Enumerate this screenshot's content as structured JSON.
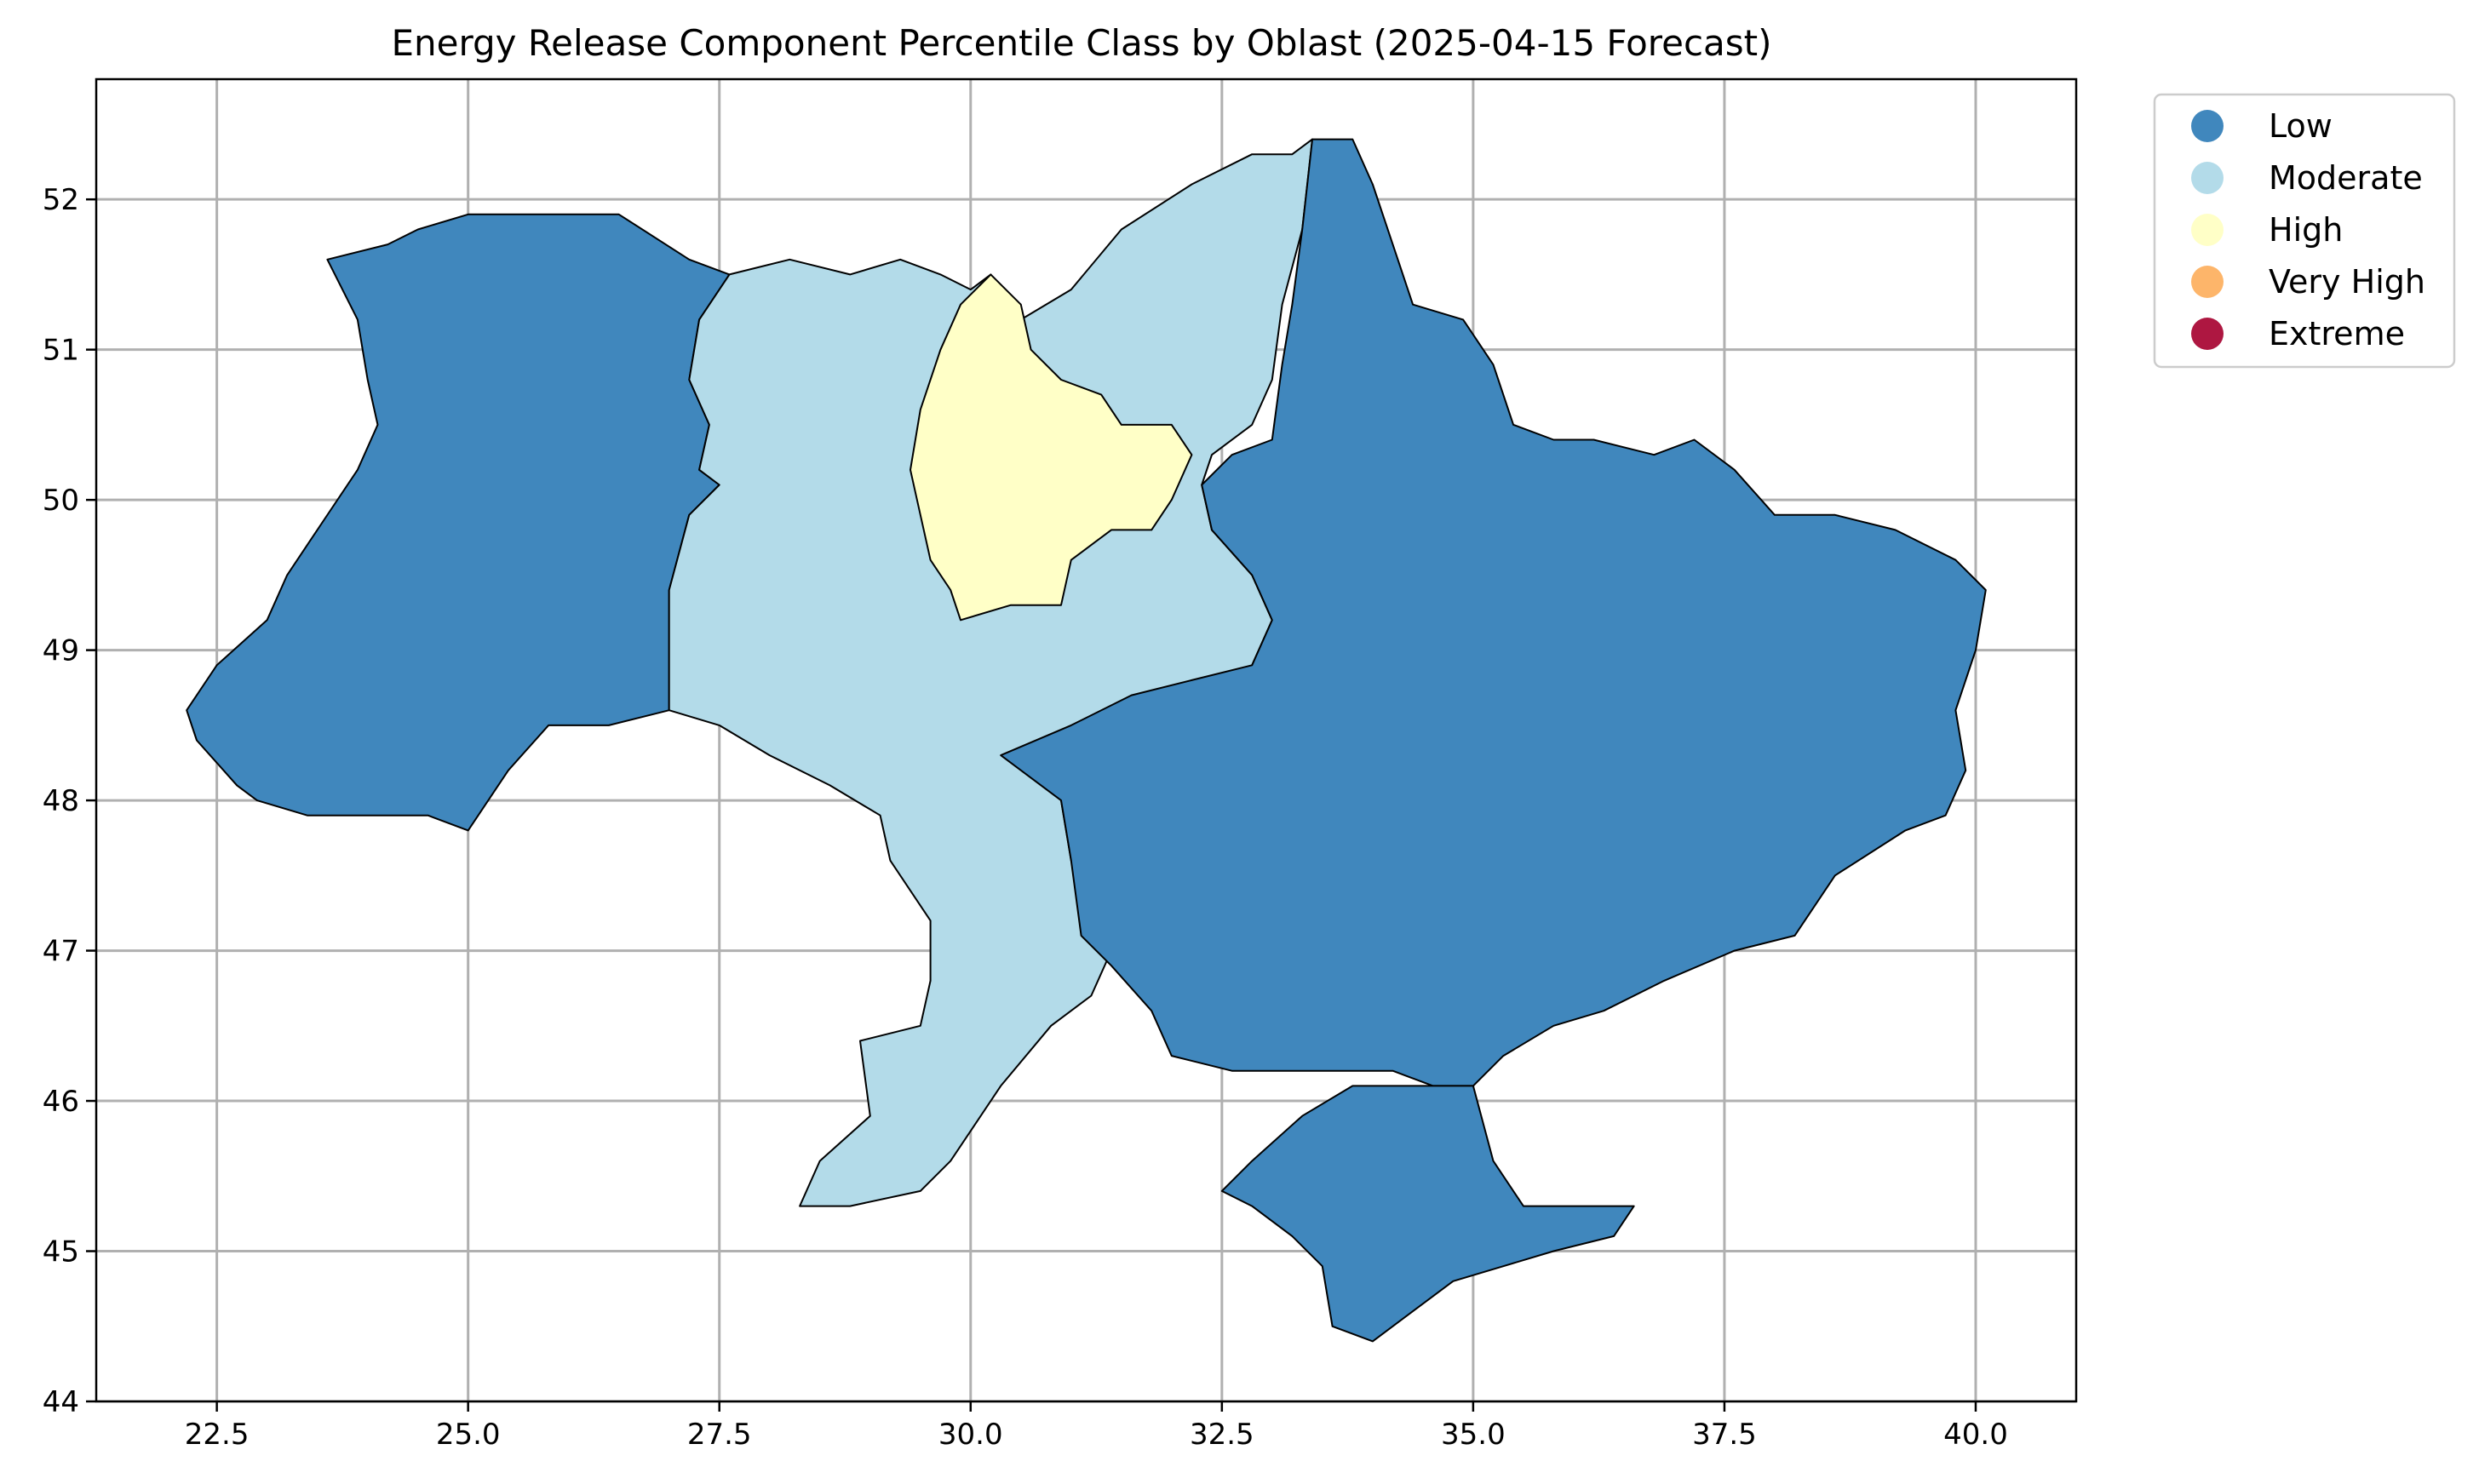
{
  "chart_data": {
    "type": "choropleth",
    "title": "Energy Release Component Percentile Class by Oblast (2025-04-15 Forecast)",
    "xlim": [
      21.3,
      41.0
    ],
    "ylim": [
      44.0,
      52.8
    ],
    "x_ticks": [
      "22.5",
      "25.0",
      "27.5",
      "30.0",
      "32.5",
      "35.0",
      "37.5",
      "40.0"
    ],
    "x_tick_values": [
      22.5,
      25.0,
      27.5,
      30.0,
      32.5,
      35.0,
      37.5,
      40.0
    ],
    "y_ticks": [
      "44",
      "45",
      "46",
      "47",
      "48",
      "49",
      "50",
      "51",
      "52"
    ],
    "y_tick_values": [
      44,
      45,
      46,
      47,
      48,
      49,
      50,
      51,
      52
    ],
    "grid": true,
    "legend_position": "outside top-right",
    "legend": [
      {
        "label": "Low",
        "color": "#4087bd"
      },
      {
        "label": "Moderate",
        "color": "#b3dbe9"
      },
      {
        "label": "High",
        "color": "#ffffc7"
      },
      {
        "label": "Very High",
        "color": "#fdb56a"
      },
      {
        "label": "Extreme",
        "color": "#ae1741"
      }
    ],
    "regions": [
      {
        "class": "Low",
        "color": "#4087bd",
        "outline": [
          [
            25.0,
            51.9
          ],
          [
            25.8,
            51.9
          ],
          [
            26.5,
            51.9
          ],
          [
            27.2,
            51.6
          ],
          [
            27.6,
            51.5
          ],
          [
            27.3,
            51.2
          ],
          [
            27.2,
            50.8
          ],
          [
            27.4,
            50.5
          ],
          [
            27.3,
            50.2
          ],
          [
            27.5,
            50.1
          ],
          [
            27.2,
            49.9
          ],
          [
            27.0,
            49.4
          ],
          [
            27.0,
            48.6
          ],
          [
            26.4,
            48.5
          ],
          [
            25.8,
            48.5
          ],
          [
            25.4,
            48.2
          ],
          [
            25.0,
            47.8
          ],
          [
            24.6,
            47.9
          ],
          [
            24.1,
            47.9
          ],
          [
            23.4,
            47.9
          ],
          [
            22.9,
            48.0
          ],
          [
            22.7,
            48.1
          ],
          [
            22.3,
            48.4
          ],
          [
            22.2,
            48.6
          ],
          [
            22.5,
            48.9
          ],
          [
            23.0,
            49.2
          ],
          [
            23.2,
            49.5
          ],
          [
            23.5,
            49.8
          ],
          [
            23.9,
            50.2
          ],
          [
            24.1,
            50.5
          ],
          [
            24.0,
            50.8
          ],
          [
            23.9,
            51.2
          ],
          [
            23.6,
            51.6
          ],
          [
            24.2,
            51.7
          ],
          [
            24.5,
            51.8
          ]
        ]
      },
      {
        "class": "Moderate",
        "color": "#b3dbe9",
        "outline": [
          [
            27.6,
            51.5
          ],
          [
            28.2,
            51.6
          ],
          [
            28.8,
            51.5
          ],
          [
            29.3,
            51.6
          ],
          [
            29.7,
            51.5
          ],
          [
            30.0,
            51.4
          ],
          [
            30.2,
            51.5
          ],
          [
            30.5,
            51.2
          ],
          [
            31.0,
            51.4
          ],
          [
            31.5,
            51.8
          ],
          [
            32.2,
            52.1
          ],
          [
            32.8,
            52.3
          ],
          [
            33.2,
            52.3
          ],
          [
            33.4,
            52.4
          ],
          [
            33.3,
            51.8
          ],
          [
            33.1,
            51.3
          ],
          [
            33.0,
            50.8
          ],
          [
            32.8,
            50.5
          ],
          [
            32.4,
            50.3
          ],
          [
            32.3,
            50.1
          ],
          [
            32.4,
            49.8
          ],
          [
            32.8,
            49.5
          ],
          [
            33.0,
            49.2
          ],
          [
            32.8,
            48.9
          ],
          [
            32.4,
            48.7
          ],
          [
            31.8,
            48.6
          ],
          [
            31.3,
            48.5
          ],
          [
            31.0,
            48.4
          ],
          [
            30.9,
            48.0
          ],
          [
            31.0,
            47.6
          ],
          [
            31.2,
            47.4
          ],
          [
            31.4,
            47.0
          ],
          [
            31.2,
            46.7
          ],
          [
            30.8,
            46.5
          ],
          [
            30.3,
            46.1
          ],
          [
            29.8,
            45.6
          ],
          [
            29.5,
            45.4
          ],
          [
            28.8,
            45.3
          ],
          [
            28.3,
            45.3
          ],
          [
            28.5,
            45.6
          ],
          [
            29.0,
            45.9
          ],
          [
            28.9,
            46.4
          ],
          [
            29.5,
            46.5
          ],
          [
            29.6,
            46.8
          ],
          [
            29.6,
            47.2
          ],
          [
            29.2,
            47.6
          ],
          [
            29.1,
            47.9
          ],
          [
            28.6,
            48.1
          ],
          [
            28.0,
            48.3
          ],
          [
            27.5,
            48.5
          ],
          [
            27.0,
            48.6
          ],
          [
            27.0,
            49.4
          ],
          [
            27.2,
            49.9
          ],
          [
            27.5,
            50.1
          ],
          [
            27.3,
            50.2
          ],
          [
            27.4,
            50.5
          ],
          [
            27.2,
            50.8
          ],
          [
            27.3,
            51.2
          ]
        ]
      },
      {
        "class": "High",
        "color": "#ffffc7",
        "outline": [
          [
            29.7,
            51.0
          ],
          [
            29.9,
            51.3
          ],
          [
            30.2,
            51.5
          ],
          [
            30.5,
            51.3
          ],
          [
            30.6,
            51.0
          ],
          [
            30.9,
            50.8
          ],
          [
            31.3,
            50.7
          ],
          [
            31.5,
            50.5
          ],
          [
            31.8,
            50.5
          ],
          [
            32.0,
            50.5
          ],
          [
            32.2,
            50.3
          ],
          [
            32.0,
            50.0
          ],
          [
            31.8,
            49.8
          ],
          [
            31.4,
            49.8
          ],
          [
            31.0,
            49.6
          ],
          [
            30.9,
            49.3
          ],
          [
            30.4,
            49.3
          ],
          [
            29.9,
            49.2
          ],
          [
            29.8,
            49.4
          ],
          [
            29.6,
            49.6
          ],
          [
            29.5,
            49.9
          ],
          [
            29.4,
            50.2
          ],
          [
            29.5,
            50.6
          ]
        ]
      },
      {
        "class": "Low",
        "color": "#4087bd",
        "outline": [
          [
            33.4,
            52.4
          ],
          [
            33.8,
            52.4
          ],
          [
            34.0,
            52.1
          ],
          [
            34.2,
            51.7
          ],
          [
            34.4,
            51.3
          ],
          [
            34.9,
            51.2
          ],
          [
            35.2,
            50.9
          ],
          [
            35.4,
            50.5
          ],
          [
            35.8,
            50.4
          ],
          [
            36.2,
            50.4
          ],
          [
            36.8,
            50.3
          ],
          [
            37.2,
            50.4
          ],
          [
            37.6,
            50.2
          ],
          [
            38.0,
            49.9
          ],
          [
            38.6,
            49.9
          ],
          [
            39.2,
            49.8
          ],
          [
            39.8,
            49.6
          ],
          [
            40.1,
            49.4
          ],
          [
            40.0,
            49.0
          ],
          [
            39.8,
            48.6
          ],
          [
            39.9,
            48.2
          ],
          [
            39.7,
            47.9
          ],
          [
            39.3,
            47.8
          ],
          [
            38.6,
            47.5
          ],
          [
            38.2,
            47.1
          ],
          [
            37.6,
            47.0
          ],
          [
            36.9,
            46.8
          ],
          [
            36.3,
            46.6
          ],
          [
            35.8,
            46.5
          ],
          [
            35.3,
            46.3
          ],
          [
            35.0,
            46.1
          ],
          [
            34.6,
            46.1
          ],
          [
            34.2,
            46.2
          ],
          [
            33.6,
            46.2
          ],
          [
            33.2,
            46.2
          ],
          [
            32.6,
            46.2
          ],
          [
            32.0,
            46.3
          ],
          [
            31.8,
            46.6
          ],
          [
            31.4,
            46.9
          ],
          [
            31.1,
            47.1
          ],
          [
            31.0,
            47.6
          ],
          [
            30.9,
            48.0
          ],
          [
            30.3,
            48.3
          ],
          [
            31.0,
            48.5
          ],
          [
            31.6,
            48.7
          ],
          [
            32.2,
            48.8
          ],
          [
            32.8,
            48.9
          ],
          [
            33.0,
            49.2
          ],
          [
            32.8,
            49.5
          ],
          [
            32.4,
            49.8
          ],
          [
            32.3,
            50.1
          ],
          [
            32.6,
            50.3
          ],
          [
            33.0,
            50.4
          ],
          [
            33.1,
            50.9
          ],
          [
            33.2,
            51.3
          ],
          [
            33.3,
            51.8
          ]
        ]
      },
      {
        "class": "Low",
        "color": "#4087bd",
        "outline": [
          [
            32.5,
            45.4
          ],
          [
            32.8,
            45.6
          ],
          [
            33.3,
            45.9
          ],
          [
            33.8,
            46.1
          ],
          [
            34.4,
            46.1
          ],
          [
            35.0,
            46.1
          ],
          [
            35.2,
            45.6
          ],
          [
            35.5,
            45.3
          ],
          [
            36.0,
            45.3
          ],
          [
            36.6,
            45.3
          ],
          [
            36.4,
            45.1
          ],
          [
            35.8,
            45.0
          ],
          [
            35.3,
            44.9
          ],
          [
            34.8,
            44.8
          ],
          [
            34.4,
            44.6
          ],
          [
            34.0,
            44.4
          ],
          [
            33.6,
            44.5
          ],
          [
            33.5,
            44.9
          ],
          [
            33.2,
            45.1
          ],
          [
            32.8,
            45.3
          ]
        ]
      }
    ]
  }
}
